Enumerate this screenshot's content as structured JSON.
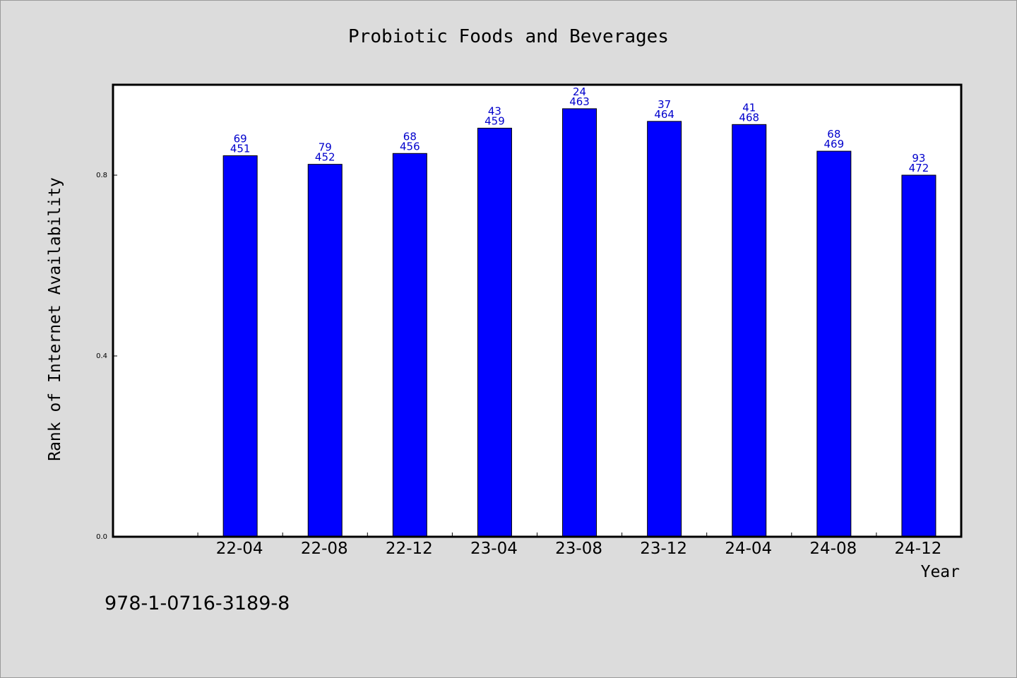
{
  "chart_data": {
    "type": "bar",
    "title": "Probiotic Foods and Beverages",
    "xlabel": "Year",
    "ylabel": "Rank of Internet Availability",
    "categories": [
      "22-04",
      "22-08",
      "22-12",
      "23-04",
      "23-08",
      "23-12",
      "24-04",
      "24-08",
      "24-12"
    ],
    "values": [
      0.843,
      0.824,
      0.848,
      0.904,
      0.947,
      0.919,
      0.912,
      0.853,
      0.8
    ],
    "label_top": [
      "69",
      "79",
      "68",
      "43",
      "24",
      "37",
      "41",
      "68",
      "93"
    ],
    "label_bottom": [
      "451",
      "452",
      "456",
      "459",
      "463",
      "464",
      "468",
      "469",
      "472"
    ],
    "yticks": [
      "0.0",
      "0.4",
      "0.8"
    ],
    "ylim": [
      0,
      1.0
    ],
    "bar_color": "#0000ff",
    "label_color": "#0000cc",
    "grid": false,
    "legend": "none"
  },
  "footer": {
    "isbn": "978-1-0716-3189-8"
  }
}
